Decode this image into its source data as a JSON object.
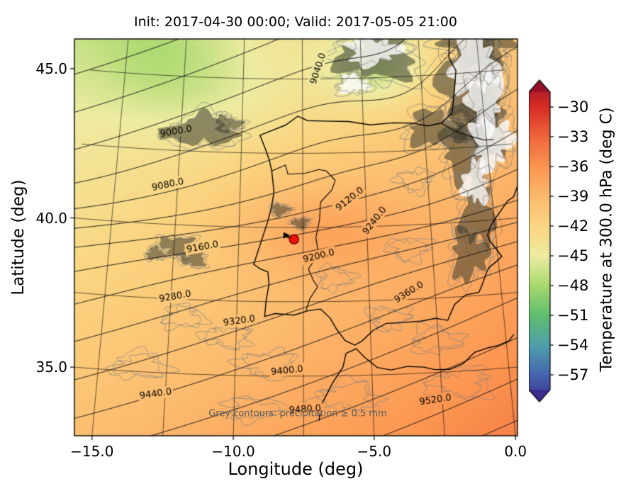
{
  "chart_data": {
    "type": "map-contour",
    "title": "Init: 2017-04-30 00:00; Valid: 2017-05-05 21:00",
    "xlabel": "Longitude (deg)",
    "ylabel": "Latitude (deg)",
    "note": "Grey contours: precipitation ≥ 0.5 mm",
    "extent": {
      "lon_min": -15.65,
      "lon_max": 0.1,
      "lat_min": 33.0,
      "lat_max": 46.1
    },
    "x_ticks": [
      {
        "value": -15,
        "label": "−15.0"
      },
      {
        "value": -10,
        "label": "−10.0"
      },
      {
        "value": -5,
        "label": "−5.0"
      },
      {
        "value": 0,
        "label": "0.0"
      }
    ],
    "y_ticks": [
      {
        "value": 45,
        "label": "45.0"
      },
      {
        "value": 40,
        "label": "40.0"
      },
      {
        "value": 35,
        "label": "35.0"
      }
    ],
    "graticule": {
      "lon_step": 2.5,
      "lat_step": 2.5
    },
    "marker": {
      "lon": -7.85,
      "lat": 39.6,
      "color": "#ee1309"
    },
    "colorbar": {
      "label": "Temperature at 300.0 hPa (deg C)",
      "vmax": -28.5,
      "vmin": -58.5,
      "ticks": [
        {
          "value": -30,
          "label": "−30"
        },
        {
          "value": -33,
          "label": "−33"
        },
        {
          "value": -36,
          "label": "−36"
        },
        {
          "value": -39,
          "label": "−39"
        },
        {
          "value": -42,
          "label": "−42"
        },
        {
          "value": -45,
          "label": "−45"
        },
        {
          "value": -48,
          "label": "−48"
        },
        {
          "value": -51,
          "label": "−51"
        },
        {
          "value": -54,
          "label": "−54"
        },
        {
          "value": -57,
          "label": "−57"
        }
      ],
      "stops": [
        [
          -60,
          "#3d2b8e"
        ],
        [
          -57,
          "#4565ad"
        ],
        [
          -54,
          "#4f9fae"
        ],
        [
          -51,
          "#5fbe6e"
        ],
        [
          -48,
          "#a8d96e"
        ],
        [
          -45,
          "#eeeca2"
        ],
        [
          -42,
          "#fbd682"
        ],
        [
          -39,
          "#fdbb6e"
        ],
        [
          -36,
          "#fc9651"
        ],
        [
          -33,
          "#ee663c"
        ],
        [
          -30,
          "#d92e26"
        ],
        [
          -27,
          "#941129"
        ]
      ]
    },
    "temperature_model": {
      "base": -40,
      "lat_ref": 39,
      "lon_ref": -8,
      "dlat": -0.45,
      "dlon": 0.3,
      "cells": [
        {
          "lon": -7.0,
          "lat": 40.0,
          "rx": 3.4,
          "ry": 1.6,
          "amp": 2.8
        },
        {
          "lon": -4.3,
          "lat": 45.4,
          "rx": 2.3,
          "ry": 1.4,
          "amp": -5.0
        },
        {
          "lon": -13.5,
          "lat": 45.8,
          "rx": 3.2,
          "ry": 2.2,
          "amp": -2.5
        },
        {
          "lon": -10.5,
          "lat": 44.5,
          "rx": 4.0,
          "ry": 1.6,
          "amp": -1.5
        }
      ]
    },
    "height_model": {
      "z0": 9210,
      "lat_ref": 39.6,
      "lon_ref": -7.75,
      "dlat": -30,
      "dlon": 10,
      "tanh_amp": 40,
      "tanh_scale": 1.2,
      "cells": [
        {
          "lon": -3.2,
          "lat": 44.5,
          "rx": 2.6,
          "ry": 2.4,
          "amp": -30
        }
      ]
    },
    "contours": {
      "variable": "geopotential height at 300 hPa (m)",
      "min": 8920,
      "max": 9560,
      "interval": 40,
      "labels": [
        {
          "value": 9000,
          "lon": -12.7,
          "lat": 43.15,
          "angle": -10
        },
        {
          "value": 9040,
          "lon": -6.85,
          "lat": 45.35,
          "angle": -72
        },
        {
          "value": 9080,
          "lon": -12.9,
          "lat": 41.35,
          "angle": -12
        },
        {
          "value": 9120,
          "lon": -5.65,
          "lat": 40.95,
          "angle": -38
        },
        {
          "value": 9160,
          "lon": -11.4,
          "lat": 39.3,
          "angle": -10
        },
        {
          "value": 9200,
          "lon": -6.9,
          "lat": 39.05,
          "angle": -14
        },
        {
          "value": 9240,
          "lon": -4.7,
          "lat": 40.2,
          "angle": -52
        },
        {
          "value": 9280,
          "lon": -12.35,
          "lat": 37.6,
          "angle": -10
        },
        {
          "value": 9320,
          "lon": -9.9,
          "lat": 36.85,
          "angle": -8
        },
        {
          "value": 9360,
          "lon": -3.5,
          "lat": 37.75,
          "angle": -32
        },
        {
          "value": 9400,
          "lon": -8.1,
          "lat": 35.2,
          "angle": -6
        },
        {
          "value": 9440,
          "lon": -12.85,
          "lat": 34.3,
          "angle": -8
        },
        {
          "value": 9480,
          "lon": -7.45,
          "lat": 33.9,
          "angle": -4
        },
        {
          "value": 9520,
          "lon": -2.75,
          "lat": 34.1,
          "angle": -8
        }
      ]
    },
    "coastlines": {
      "iberia_france": [
        [
          -1.15,
          46.35
        ],
        [
          -1.25,
          45.55
        ],
        [
          -1.0,
          45.1
        ],
        [
          -1.1,
          44.6
        ],
        [
          -1.3,
          43.7
        ],
        [
          -1.78,
          43.37
        ],
        [
          -2.35,
          43.3
        ],
        [
          -2.95,
          43.42
        ],
        [
          -3.8,
          43.46
        ],
        [
          -4.7,
          43.42
        ],
        [
          -5.6,
          43.55
        ],
        [
          -6.6,
          43.58
        ],
        [
          -7.3,
          43.6
        ],
        [
          -7.7,
          43.75
        ],
        [
          -8.2,
          43.45
        ],
        [
          -8.65,
          43.3
        ],
        [
          -9.25,
          43.1
        ],
        [
          -9.0,
          42.6
        ],
        [
          -8.85,
          42.25
        ],
        [
          -8.75,
          41.9
        ],
        [
          -8.65,
          41.2
        ],
        [
          -8.75,
          40.65
        ],
        [
          -8.9,
          40.15
        ],
        [
          -9.4,
          38.75
        ],
        [
          -9.15,
          38.6
        ],
        [
          -8.85,
          38.5
        ],
        [
          -8.8,
          38.1
        ],
        [
          -8.9,
          37.55
        ],
        [
          -8.95,
          37.0
        ],
        [
          -8.55,
          37.1
        ],
        [
          -7.85,
          37.05
        ],
        [
          -7.3,
          37.2
        ],
        [
          -6.85,
          37.25
        ],
        [
          -6.5,
          36.95
        ],
        [
          -6.25,
          36.55
        ],
        [
          -5.95,
          36.18
        ],
        [
          -5.6,
          36.02
        ],
        [
          -5.33,
          36.15
        ],
        [
          -4.9,
          36.5
        ],
        [
          -4.4,
          36.72
        ],
        [
          -3.75,
          36.73
        ],
        [
          -3.1,
          36.75
        ],
        [
          -2.55,
          36.82
        ],
        [
          -2.1,
          36.73
        ],
        [
          -1.8,
          37.25
        ],
        [
          -1.35,
          37.55
        ],
        [
          -0.85,
          37.6
        ],
        [
          -0.7,
          37.85
        ],
        [
          -0.52,
          38.2
        ],
        [
          -0.4,
          38.4
        ],
        [
          -0.07,
          38.6
        ],
        [
          0.15,
          38.75
        ],
        [
          0.05,
          38.9
        ],
        [
          -0.25,
          39.3
        ],
        [
          -0.32,
          39.5
        ],
        [
          -0.2,
          39.75
        ],
        [
          0.0,
          40.0
        ],
        [
          0.2,
          40.2
        ],
        [
          0.6,
          40.6
        ],
        [
          0.85,
          40.72
        ],
        [
          1.05,
          41.07
        ]
      ],
      "north_africa": [
        [
          -6.95,
          33.5
        ],
        [
          -6.85,
          34.05
        ],
        [
          -6.45,
          34.75
        ],
        [
          -6.05,
          35.3
        ],
        [
          -5.93,
          35.75
        ],
        [
          -5.55,
          35.9
        ],
        [
          -5.25,
          35.6
        ],
        [
          -4.8,
          35.25
        ],
        [
          -4.3,
          35.15
        ],
        [
          -3.7,
          35.25
        ],
        [
          -3.1,
          35.2
        ],
        [
          -2.7,
          35.1
        ],
        [
          -2.15,
          35.08
        ],
        [
          -1.65,
          35.25
        ],
        [
          -1.2,
          35.6
        ],
        [
          -0.7,
          35.72
        ],
        [
          -0.3,
          35.78
        ],
        [
          0.1,
          35.9
        ],
        [
          0.3,
          36.1
        ]
      ]
    },
    "borders": {
      "spain_france": [
        [
          -1.78,
          43.37
        ],
        [
          -1.3,
          43.1
        ],
        [
          -0.7,
          42.88
        ],
        [
          -0.05,
          42.7
        ],
        [
          0.3,
          42.7
        ]
      ],
      "portugal_spain": [
        [
          -8.75,
          41.9
        ],
        [
          -8.2,
          42.1
        ],
        [
          -8.1,
          41.8
        ],
        [
          -7.4,
          41.83
        ],
        [
          -6.85,
          41.95
        ],
        [
          -6.55,
          41.9
        ],
        [
          -6.2,
          41.58
        ],
        [
          -6.35,
          41.25
        ],
        [
          -6.8,
          40.85
        ],
        [
          -6.85,
          40.25
        ],
        [
          -7.0,
          39.65
        ],
        [
          -6.9,
          39.1
        ],
        [
          -7.3,
          38.6
        ],
        [
          -7.1,
          38.2
        ],
        [
          -6.95,
          38.0
        ],
        [
          -7.25,
          37.6
        ],
        [
          -7.4,
          37.2
        ]
      ]
    },
    "precip_cells": [
      {
        "lon": -11.55,
        "lat": 43.2,
        "rx": 1.0,
        "ry": 0.5,
        "fill": "dark"
      },
      {
        "lon": -10.6,
        "lat": 43.45,
        "rx": 0.45,
        "ry": 0.25,
        "fill": "dark"
      },
      {
        "lon": -12.4,
        "lat": 39.3,
        "rx": 0.55,
        "ry": 0.3,
        "fill": "dark"
      },
      {
        "lon": -11.7,
        "lat": 38.85,
        "rx": 0.4,
        "ry": 0.22,
        "fill": "dark"
      },
      {
        "lon": -13.2,
        "lat": 39.0,
        "rx": 0.3,
        "ry": 0.2,
        "fill": "dark"
      },
      {
        "lon": -8.4,
        "lat": 40.6,
        "rx": 0.3,
        "ry": 0.18,
        "fill": "dark"
      },
      {
        "lon": -7.6,
        "lat": 40.15,
        "rx": 0.28,
        "ry": 0.16,
        "fill": "dark"
      },
      {
        "lon": -4.35,
        "lat": 45.7,
        "rx": 1.3,
        "ry": 0.75,
        "fill": "dark"
      },
      {
        "lon": -2.1,
        "lat": 43.2,
        "rx": 0.9,
        "ry": 0.55,
        "fill": "dark"
      },
      {
        "lon": -0.9,
        "lat": 42.4,
        "rx": 0.8,
        "ry": 0.9,
        "fill": "dark"
      },
      {
        "lon": -0.35,
        "lat": 44.6,
        "rx": 1.0,
        "ry": 1.6,
        "fill": "dark"
      },
      {
        "lon": -0.6,
        "lat": 40.3,
        "rx": 0.55,
        "ry": 1.1,
        "fill": "dark"
      },
      {
        "lon": -1.1,
        "lat": 38.9,
        "rx": 0.6,
        "ry": 0.8,
        "fill": "dark"
      },
      {
        "lon": 0.1,
        "lat": 46.0,
        "rx": 1.4,
        "ry": 0.7,
        "fill": "dark"
      },
      {
        "lon": -0.1,
        "lat": 43.4,
        "rx": 0.9,
        "ry": 1.2,
        "fill": "dark"
      },
      {
        "lon": -0.2,
        "lat": 45.3,
        "rx": 0.8,
        "ry": 1.0,
        "fill": "white"
      },
      {
        "lon": -4.5,
        "lat": 45.9,
        "rx": 0.9,
        "ry": 0.45,
        "fill": "white"
      },
      {
        "lon": 0.1,
        "lat": 44.0,
        "rx": 0.6,
        "ry": 0.9,
        "fill": "white"
      },
      {
        "lon": -0.6,
        "lat": 41.3,
        "rx": 0.45,
        "ry": 0.7,
        "fill": "white"
      },
      {
        "lon": -5.35,
        "lat": 44.8,
        "rx": 0.5,
        "ry": 0.3,
        "fill": "white"
      },
      {
        "lon": 0.2,
        "lat": 42.6,
        "rx": 0.7,
        "ry": 0.8,
        "fill": "white"
      },
      {
        "lon": -8.8,
        "lat": 35.4,
        "rx": 0.8,
        "ry": 0.35,
        "fill": "none"
      },
      {
        "lon": -5.9,
        "lat": 34.3,
        "rx": 0.9,
        "ry": 0.4,
        "fill": "none"
      },
      {
        "lon": -2.6,
        "lat": 36.1,
        "rx": 0.7,
        "ry": 0.35,
        "fill": "none"
      },
      {
        "lon": -4.3,
        "lat": 36.9,
        "rx": 0.6,
        "ry": 0.3,
        "fill": "none"
      },
      {
        "lon": -10.3,
        "lat": 36.3,
        "rx": 0.7,
        "ry": 0.3,
        "fill": "none"
      },
      {
        "lon": -13.5,
        "lat": 35.2,
        "rx": 0.8,
        "ry": 0.35,
        "fill": "none"
      },
      {
        "lon": -6.3,
        "lat": 38.3,
        "rx": 0.5,
        "ry": 0.3,
        "fill": "none"
      },
      {
        "lon": -3.4,
        "lat": 39.2,
        "rx": 0.6,
        "ry": 0.3,
        "fill": "none"
      },
      {
        "lon": -1.8,
        "lat": 34.6,
        "rx": 0.9,
        "ry": 0.4,
        "fill": "none"
      },
      {
        "lon": -12.0,
        "lat": 36.9,
        "rx": 0.6,
        "ry": 0.3,
        "fill": "none"
      },
      {
        "lon": -9.3,
        "lat": 33.9,
        "rx": 0.8,
        "ry": 0.3,
        "fill": "none"
      },
      {
        "lon": -3.0,
        "lat": 41.5,
        "rx": 0.5,
        "ry": 0.3,
        "fill": "none"
      }
    ]
  }
}
